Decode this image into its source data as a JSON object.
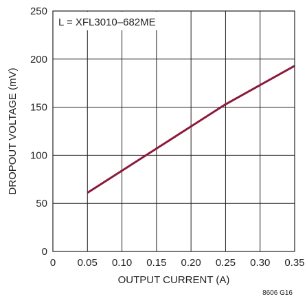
{
  "chart_data": {
    "type": "line",
    "title": "",
    "annotation": "L = XFL3010–682ME",
    "figure_id": "8606 G16",
    "xlabel": "OUTPUT CURRENT (A)",
    "ylabel": "DROPOUT VOLTAGE (mV)",
    "xlim": [
      0,
      0.35
    ],
    "ylim": [
      0,
      250
    ],
    "xticks": [
      0,
      0.05,
      0.1,
      0.15,
      0.2,
      0.25,
      0.3,
      0.35
    ],
    "xtick_labels": [
      "0",
      "0.05",
      "0.10",
      "0.15",
      "0.20",
      "0.25",
      "0.30",
      "0.35"
    ],
    "yticks": [
      0,
      50,
      100,
      150,
      200,
      250
    ],
    "ytick_labels": [
      "0",
      "50",
      "100",
      "150",
      "200",
      "250"
    ],
    "grid": true,
    "legend": "none",
    "series": [
      {
        "color": "#8b1a3a",
        "x": [
          0.05,
          0.1,
          0.15,
          0.2,
          0.25,
          0.3,
          0.35
        ],
        "y": [
          61,
          84,
          107,
          130,
          153,
          173,
          193
        ]
      }
    ]
  }
}
